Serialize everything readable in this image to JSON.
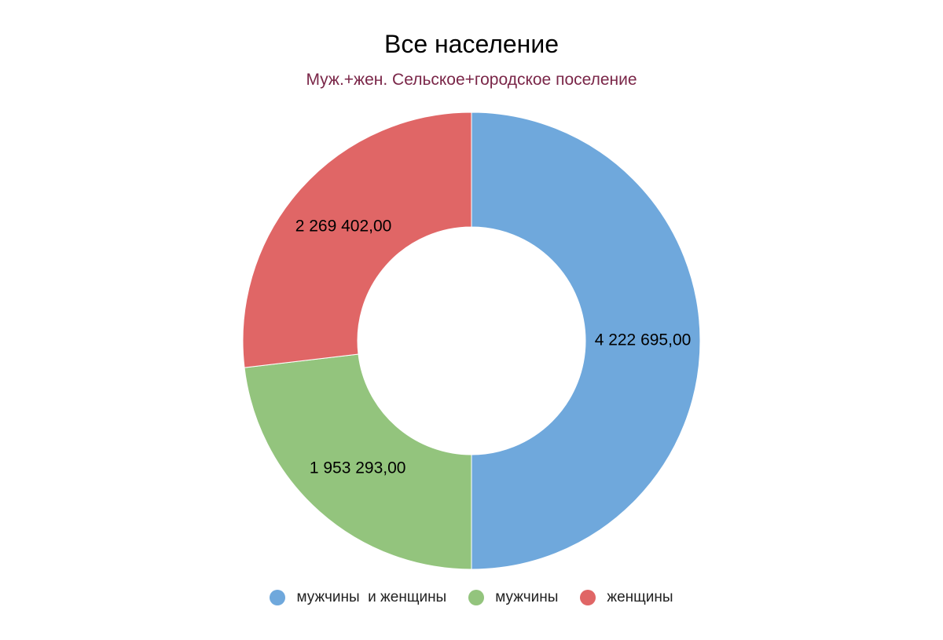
{
  "chart_data": {
    "type": "pie",
    "variant": "donut",
    "title": "Все население",
    "subtitle": "Муж.+жен. Сельское+городское поселение",
    "legend_position": "bottom",
    "slices": [
      {
        "name": "мужчины  и женщины",
        "value": 4222695.0,
        "label": "4 222 695,00",
        "color": "#6fa8dc"
      },
      {
        "name": "мужчины",
        "value": 1953293.0,
        "label": "1 953 293,00",
        "color": "#93c47d"
      },
      {
        "name": "женщины",
        "value": 2269402.0,
        "label": "2 269 402,00",
        "color": "#e06666"
      }
    ]
  }
}
